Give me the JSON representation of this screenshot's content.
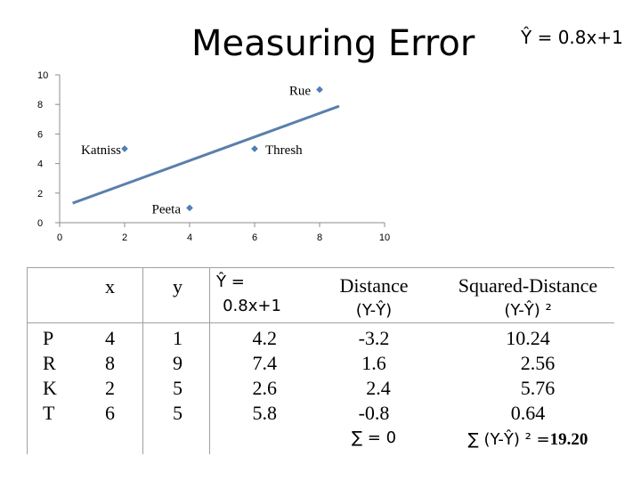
{
  "title": "Measuring Error",
  "formula": "Ŷ = 0.8x+1",
  "chart_data": {
    "type": "scatter",
    "xlim": [
      0,
      10
    ],
    "ylim": [
      0,
      10
    ],
    "xticks": [
      "0",
      "2",
      "4",
      "6",
      "8",
      "10"
    ],
    "yticks": [
      "0",
      "2",
      "4",
      "6",
      "8",
      "10"
    ],
    "points": [
      {
        "label": "Katniss",
        "x": 2,
        "y": 5
      },
      {
        "label": "Rue",
        "x": 8,
        "y": 9
      },
      {
        "label": "Thresh",
        "x": 6,
        "y": 5
      },
      {
        "label": "Peeta",
        "x": 4,
        "y": 1
      }
    ],
    "trendline": {
      "slope": 0.8,
      "intercept": 1,
      "x_from": 0.4,
      "x_to": 8.6
    },
    "colors": {
      "points": "#4f81bd",
      "line": "#5a7fac",
      "axis": "#8c8c8c"
    }
  },
  "table": {
    "headers": {
      "x": "x",
      "y": "y",
      "yhat_line1": "Ŷ =",
      "yhat_line2": "0.8x+1",
      "distance_line1": "Distance",
      "distance_line2": "(Y-Ŷ)",
      "squared_line1": "Squared-Distance",
      "squared_line2": "(Y-Ŷ) ²"
    },
    "rows": [
      {
        "name": "P",
        "x": "4",
        "y": "1",
        "yhat": "4.2",
        "distance": "-3.2",
        "squared": "10.24"
      },
      {
        "name": "R",
        "x": "8",
        "y": "9",
        "yhat": "7.4",
        "distance": "1.6",
        "squared": "2.56"
      },
      {
        "name": "K",
        "x": "2",
        "y": "5",
        "yhat": "2.6",
        "distance": "2.4",
        "squared": "5.76"
      },
      {
        "name": "T",
        "x": "6",
        "y": "5",
        "yhat": "5.8",
        "distance": "-0.8",
        "squared": "0.64"
      }
    ],
    "distance_sum": "∑ =  0",
    "squared_sum_prefix": "∑ (Y-Ŷ) ² =",
    "squared_sum_value": "19.20"
  }
}
